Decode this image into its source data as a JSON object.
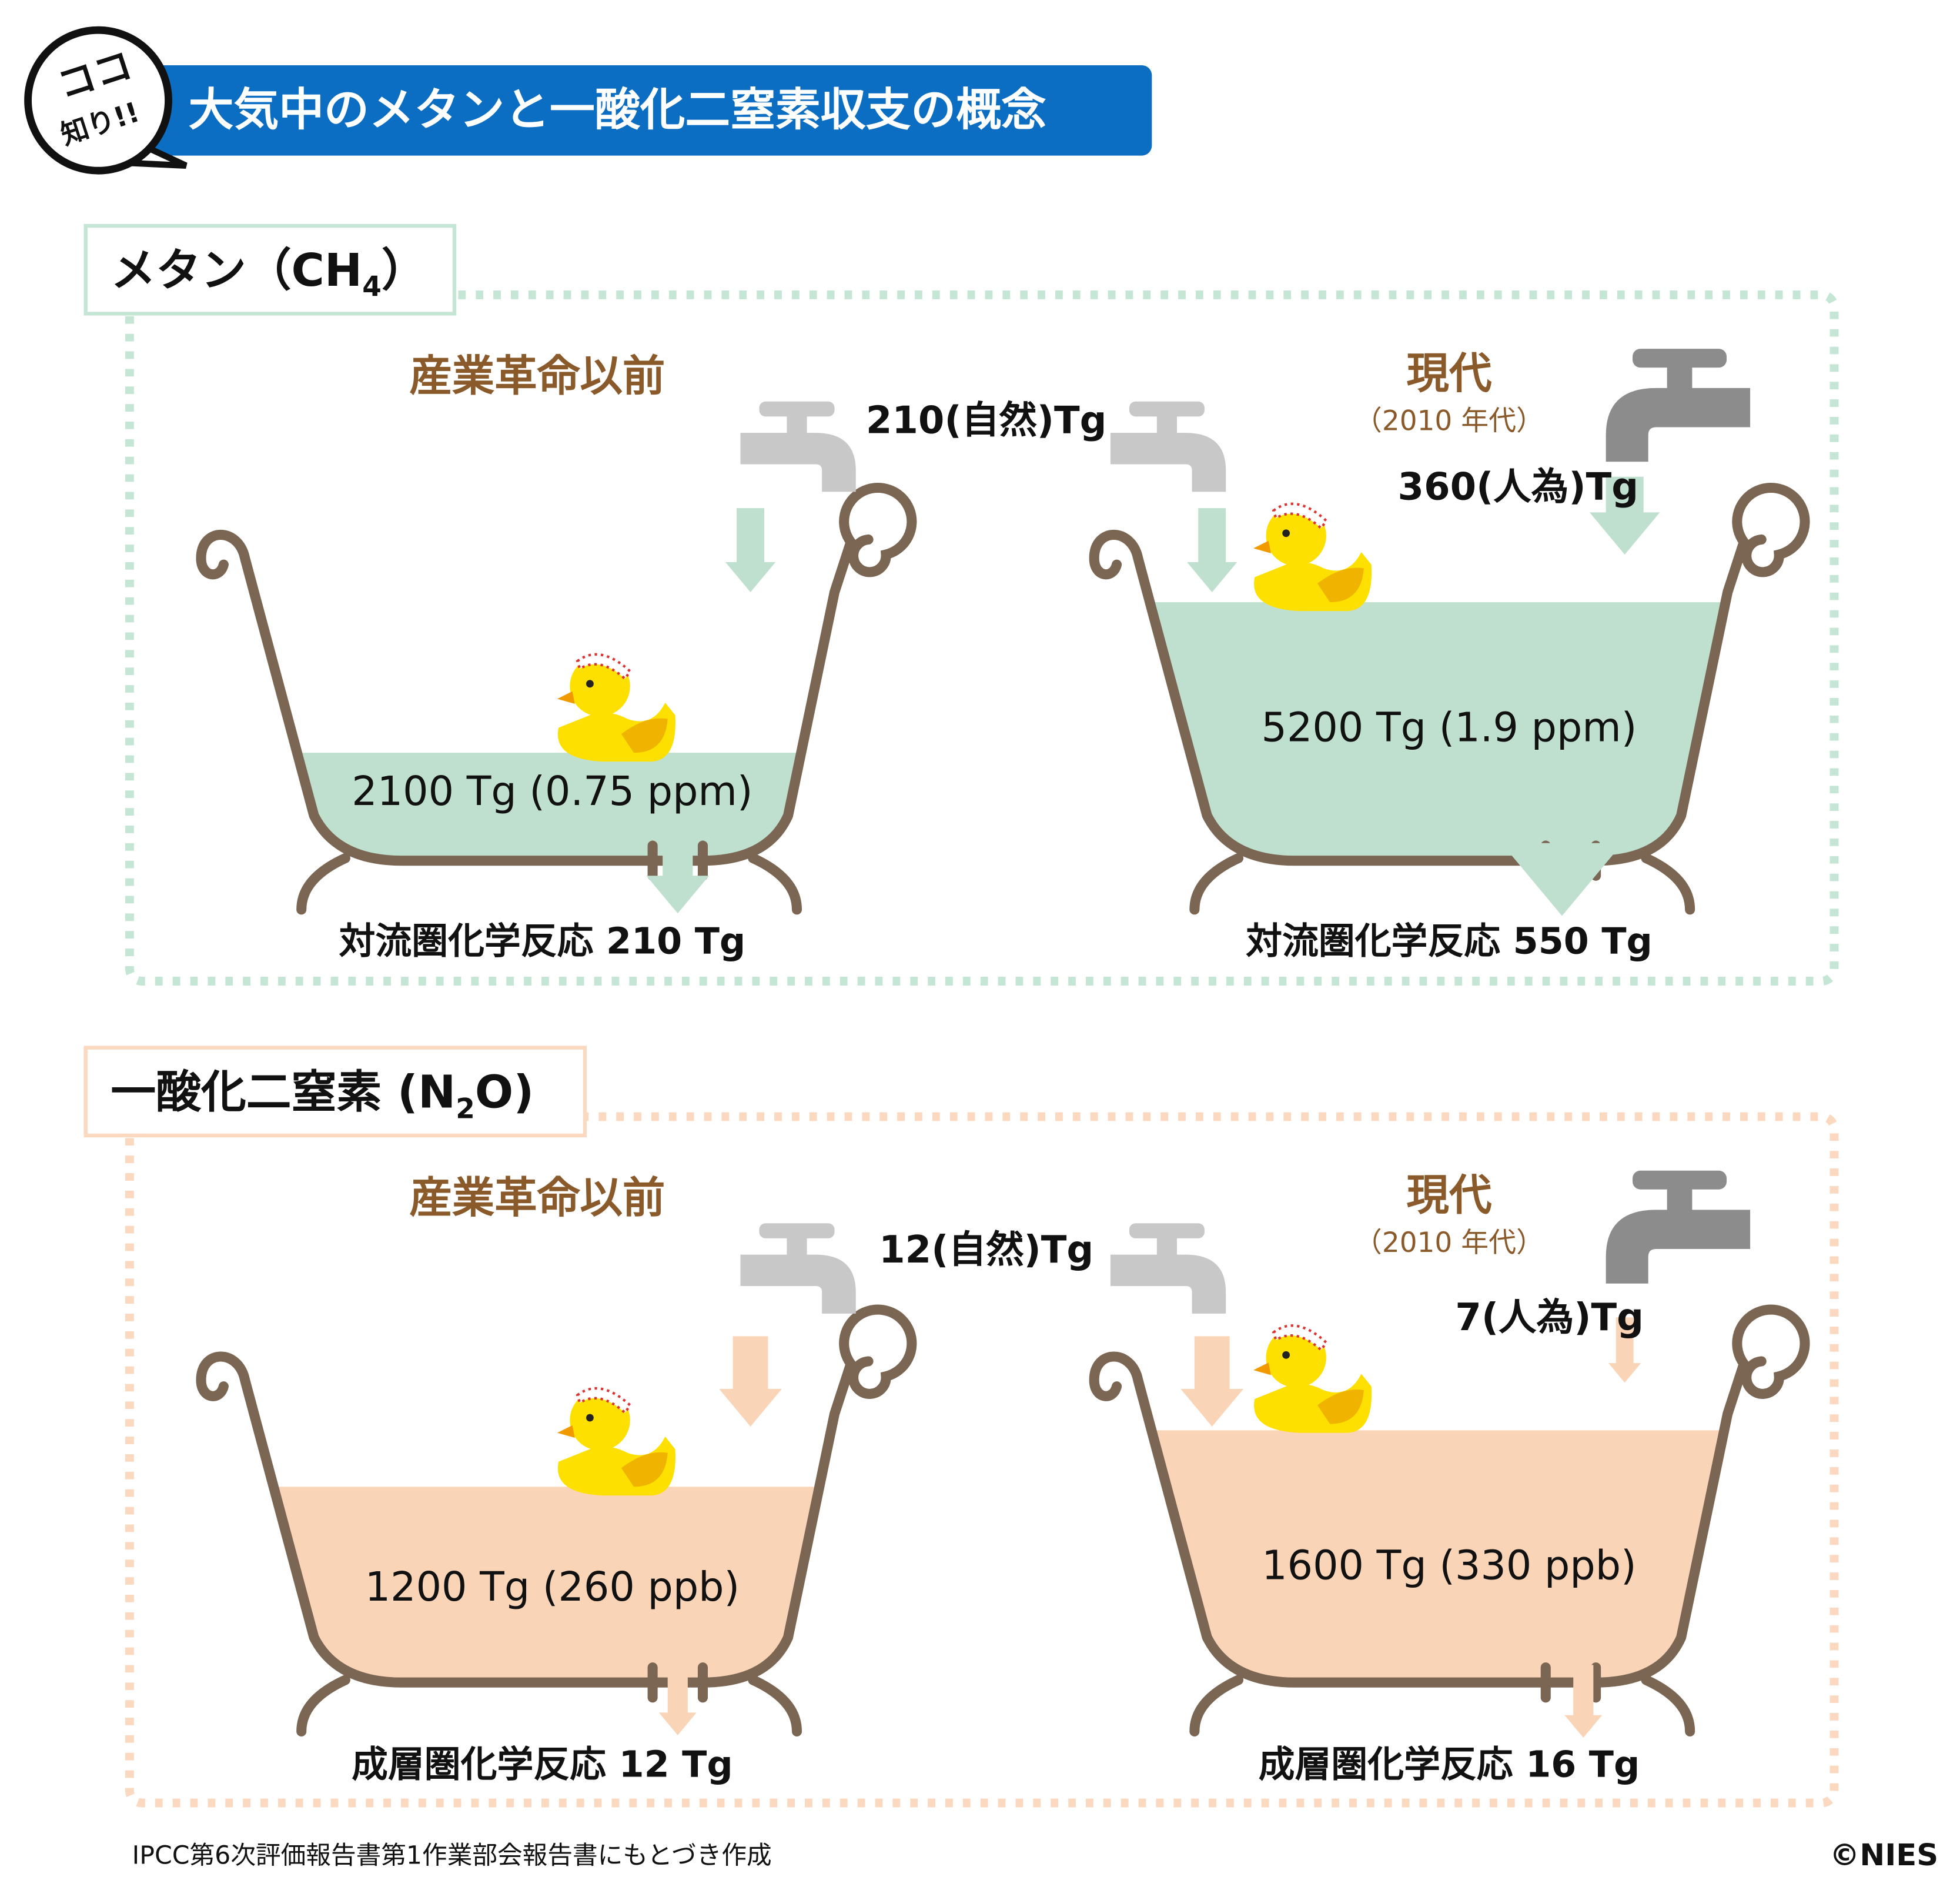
{
  "badge": {
    "line1": "ココ",
    "line2": "知り!!"
  },
  "title": "大気中のメタンと一酸化二窒素収支の概念",
  "sections": [
    {
      "label": {
        "main": "メタン（CH",
        "sub": "4",
        "end": "）"
      },
      "before": {
        "heading": "産業革命以前",
        "reservoir": "2100 Tg (0.75 ppm)",
        "sink": "対流圏化学反応 210 Tg"
      },
      "natural": "210(自然)Tg",
      "modern": {
        "heading": "現代",
        "period": "（2010 年代）",
        "anthropogenic": "360(人為)Tg",
        "reservoir": "5200 Tg (1.9 ppm)",
        "sink": "対流圏化学反応 550 Tg"
      }
    },
    {
      "label": {
        "main": "一酸化二窒素 (N",
        "sub": "2",
        "end": "O)"
      },
      "before": {
        "heading": "産業革命以前",
        "reservoir": "1200 Tg (260 ppb)",
        "sink": "成層圏化学反応 12 Tg"
      },
      "natural": "12(自然)Tg",
      "modern": {
        "heading": "現代",
        "period": "（2010 年代）",
        "anthropogenic": "7(人為)Tg",
        "reservoir": "1600 Tg (330 ppb)",
        "sink": "成層圏化学反応 16 Tg"
      }
    }
  ],
  "source": "IPCC第6次評価報告書第1作業部会報告書にもとづき作成",
  "copyright": "©NIES"
}
